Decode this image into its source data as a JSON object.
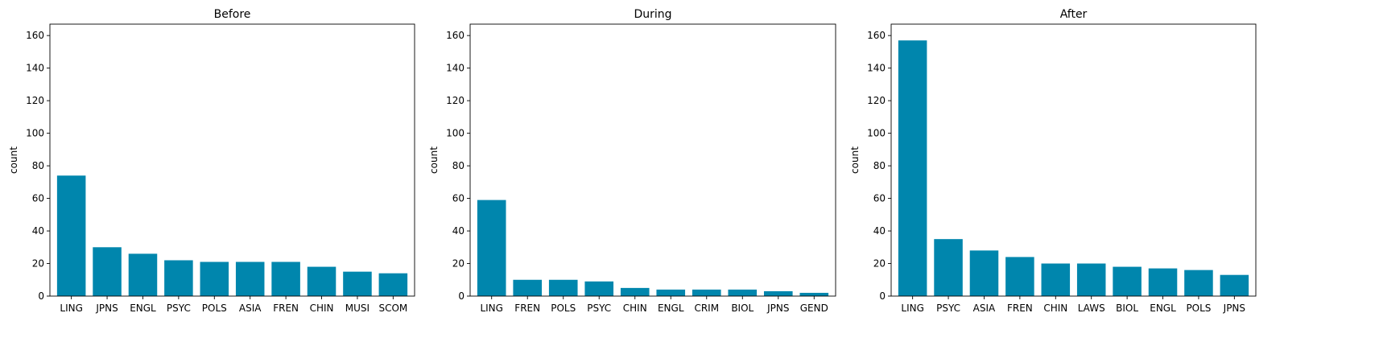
{
  "chart_data": [
    {
      "type": "bar",
      "title": "Before",
      "xlabel": "",
      "ylabel": "count",
      "ylim": [
        0,
        167
      ],
      "yticks": [
        0,
        20,
        40,
        60,
        80,
        100,
        120,
        140,
        160
      ],
      "categories": [
        "LING",
        "JPNS",
        "ENGL",
        "PSYC",
        "POLS",
        "ASIA",
        "FREN",
        "CHIN",
        "MUSI",
        "SCOM"
      ],
      "values": [
        74,
        30,
        26,
        22,
        21,
        21,
        21,
        18,
        15,
        14
      ],
      "bar_color": "#0086AD",
      "grid": false
    },
    {
      "type": "bar",
      "title": "During",
      "xlabel": "",
      "ylabel": "count",
      "ylim": [
        0,
        167
      ],
      "yticks": [
        0,
        20,
        40,
        60,
        80,
        100,
        120,
        140,
        160
      ],
      "categories": [
        "LING",
        "FREN",
        "POLS",
        "PSYC",
        "CHIN",
        "ENGL",
        "CRIM",
        "BIOL",
        "JPNS",
        "GEND"
      ],
      "values": [
        59,
        10,
        10,
        9,
        5,
        4,
        4,
        4,
        3,
        2
      ],
      "bar_color": "#0086AD",
      "grid": false
    },
    {
      "type": "bar",
      "title": "After",
      "xlabel": "",
      "ylabel": "count",
      "ylim": [
        0,
        167
      ],
      "yticks": [
        0,
        20,
        40,
        60,
        80,
        100,
        120,
        140,
        160
      ],
      "categories": [
        "LING",
        "PSYC",
        "ASIA",
        "FREN",
        "CHIN",
        "LAWS",
        "BIOL",
        "ENGL",
        "POLS",
        "JPNS"
      ],
      "values": [
        157,
        35,
        28,
        24,
        20,
        20,
        18,
        17,
        16,
        13
      ],
      "bar_color": "#0086AD",
      "grid": false
    }
  ]
}
